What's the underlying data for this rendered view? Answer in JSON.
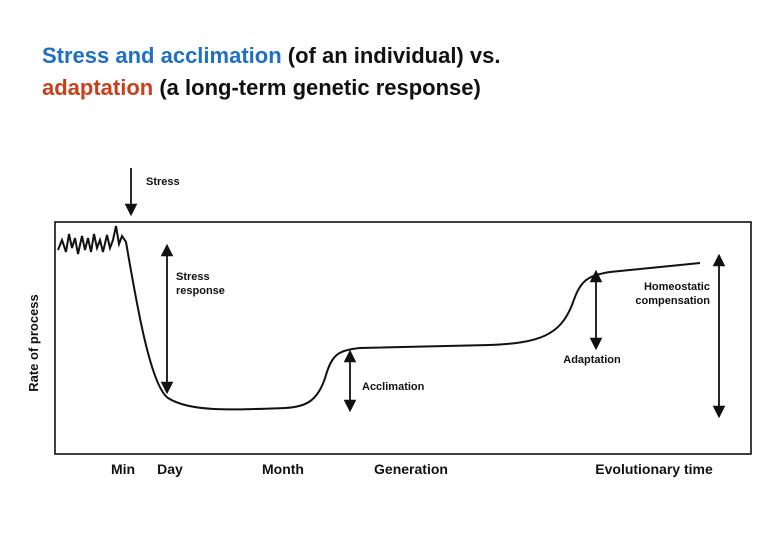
{
  "title": {
    "line1_blue": "Stress and acclimation",
    "line1_black": " (of an individual) vs.",
    "line2_red": "adaptation",
    "line2_black": " (a long-term genetic response)"
  },
  "diagram": {
    "ylabel": "Rate of process",
    "x_ticks": [
      "Min",
      "Day",
      "Month",
      "Generation",
      "Evolutionary time"
    ],
    "annotations": {
      "stress": "Stress",
      "stress_response_1": "Stress",
      "stress_response_2": "response",
      "acclimation": "Acclimation",
      "adaptation": "Adaptation",
      "homeostatic_1": "Homeostatic",
      "homeostatic_2": "compensation"
    }
  }
}
